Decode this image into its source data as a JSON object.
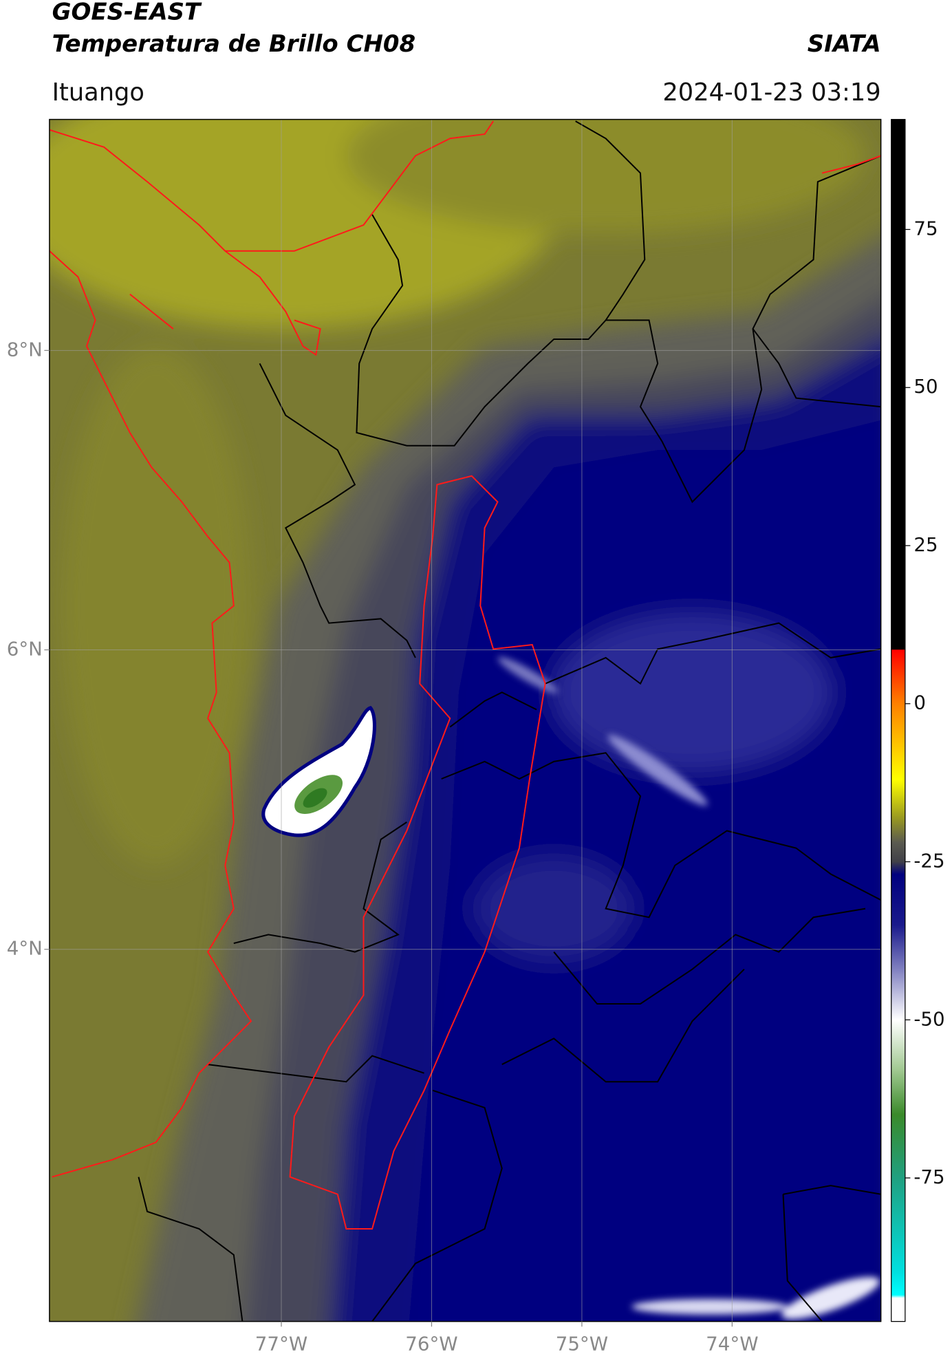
{
  "header": {
    "title": "GOES-EAST",
    "subtitle": "Temperatura de Brillo CH08",
    "source": "SIATA",
    "location": "Ituango",
    "datetime": "2024-01-23 03:19"
  },
  "map": {
    "lonlim": [
      -78.543,
      -73.01
    ],
    "latlim": [
      1.514,
      9.543
    ],
    "grid": true,
    "lonticks": [
      {
        "value": -77,
        "label": "77°W"
      },
      {
        "value": -76,
        "label": "76°W"
      },
      {
        "value": -75,
        "label": "75°W"
      },
      {
        "value": -74,
        "label": "74°W"
      }
    ],
    "latticks": [
      {
        "value": 8,
        "label": "8°N"
      },
      {
        "value": 6,
        "label": "6°N"
      },
      {
        "value": 4,
        "label": "4°N"
      }
    ]
  },
  "colorbar": {
    "lim": [
      -97.7,
      92.4
    ],
    "ticks": [
      75,
      50,
      25,
      0,
      -25,
      -50,
      -75
    ],
    "stops": [
      {
        "value": 92.4,
        "color": "#000000"
      },
      {
        "value": 8.6,
        "color": "#000000"
      },
      {
        "value": 8.5,
        "color": "#ff0000"
      },
      {
        "value": 0,
        "color": "#ff8000"
      },
      {
        "value": -12,
        "color": "#ffff00"
      },
      {
        "value": -18,
        "color": "#9a9a20"
      },
      {
        "value": -22,
        "color": "#5a5a50"
      },
      {
        "value": -25,
        "color": "#404048"
      },
      {
        "value": -27,
        "color": "#00007f"
      },
      {
        "value": -35,
        "color": "#1a1a8c"
      },
      {
        "value": -42,
        "color": "#8080c0"
      },
      {
        "value": -50,
        "color": "#ffffff"
      },
      {
        "value": -58,
        "color": "#a0c890"
      },
      {
        "value": -65,
        "color": "#3a8a2a"
      },
      {
        "value": -75,
        "color": "#20a080"
      },
      {
        "value": -90,
        "color": "#00e0e0"
      },
      {
        "value": -93.5,
        "color": "#00ffff"
      },
      {
        "value": -94,
        "color": "#ffffff"
      },
      {
        "value": -97.7,
        "color": "#ffffff"
      }
    ]
  }
}
